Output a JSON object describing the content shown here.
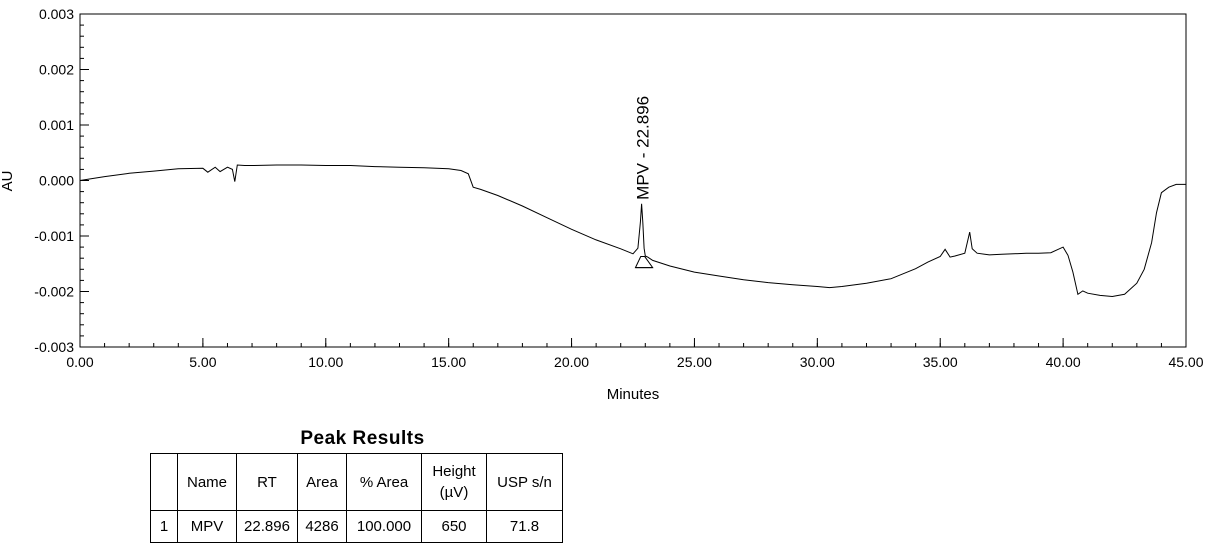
{
  "chart_data": {
    "type": "line",
    "title": "",
    "xlabel": "Minutes",
    "ylabel": "AU",
    "xlim": [
      0,
      45
    ],
    "ylim": [
      -0.003,
      0.003
    ],
    "x_ticks": [
      "0.00",
      "5.00",
      "10.00",
      "15.00",
      "20.00",
      "25.00",
      "30.00",
      "35.00",
      "40.00",
      "45.00"
    ],
    "y_ticks": [
      "0.003",
      "0.002",
      "0.001",
      "0.000",
      "-0.001",
      "-0.002",
      "-0.003"
    ],
    "grid": false,
    "line_color": "#000000",
    "series": [
      {
        "x": [
          0.0,
          1.0,
          2.0,
          3.0,
          4.0,
          5.0,
          5.2,
          5.5,
          5.7,
          6.0,
          6.2,
          6.3,
          6.4,
          6.7,
          7.0,
          8.0,
          9.0,
          10.0,
          11.0,
          12.0,
          13.0,
          14.0,
          15.0,
          15.5,
          15.8,
          16.0,
          16.3,
          17.0,
          18.0,
          19.0,
          20.0,
          21.0,
          22.0,
          22.5,
          22.7,
          22.8,
          22.85,
          22.9,
          22.95,
          23.0,
          23.1,
          23.3,
          24.0,
          25.0,
          26.0,
          27.0,
          28.0,
          29.0,
          30.0,
          30.5,
          31.0,
          32.0,
          33.0,
          34.0,
          34.5,
          35.0,
          35.2,
          35.4,
          35.6,
          36.0,
          36.2,
          36.3,
          36.5,
          37.0,
          37.5,
          38.0,
          38.5,
          39.0,
          39.5,
          40.0,
          40.2,
          40.4,
          40.6,
          40.8,
          41.0,
          41.5,
          42.0,
          42.5,
          43.0,
          43.3,
          43.6,
          43.8,
          44.0,
          44.3,
          44.6,
          45.0
        ],
        "y": [
          0.0,
          7e-05,
          0.00013,
          0.00017,
          0.00021,
          0.00022,
          0.00015,
          0.00024,
          0.00016,
          0.00024,
          0.0002,
          -2e-05,
          0.00028,
          0.00027,
          0.00027,
          0.00028,
          0.00028,
          0.00027,
          0.00027,
          0.00025,
          0.00024,
          0.00023,
          0.00021,
          0.00018,
          0.00012,
          -0.00012,
          -0.00016,
          -0.00027,
          -0.00046,
          -0.00067,
          -0.00088,
          -0.00107,
          -0.00123,
          -0.00132,
          -0.00122,
          -0.00075,
          -0.00042,
          -0.00075,
          -0.00122,
          -0.00136,
          -0.00138,
          -0.00144,
          -0.00154,
          -0.00165,
          -0.00172,
          -0.00179,
          -0.00184,
          -0.00188,
          -0.00191,
          -0.00193,
          -0.00191,
          -0.00185,
          -0.00177,
          -0.00159,
          -0.00147,
          -0.00137,
          -0.00124,
          -0.00138,
          -0.00136,
          -0.00131,
          -0.00093,
          -0.00123,
          -0.00131,
          -0.00134,
          -0.00133,
          -0.00132,
          -0.00131,
          -0.00131,
          -0.0013,
          -0.0012,
          -0.00135,
          -0.00165,
          -0.00205,
          -0.00199,
          -0.00203,
          -0.00207,
          -0.00209,
          -0.00205,
          -0.00185,
          -0.0016,
          -0.00112,
          -0.00058,
          -0.00022,
          -0.00012,
          -7e-05,
          -7e-05
        ]
      }
    ],
    "peaks": [
      {
        "label": "MPV - 22.896",
        "x": 22.896,
        "y": -0.00042,
        "baseline_start": 22.6,
        "baseline_end": 23.3
      }
    ]
  },
  "results": {
    "title": "Peak Results",
    "headers": [
      "",
      "Name",
      "RT",
      "Area",
      "% Area",
      "Height\n(µV)",
      "USP s/n"
    ],
    "rows": [
      [
        "1",
        "MPV",
        "22.896",
        "4286",
        "100.000",
        "650",
        "71.8"
      ]
    ]
  }
}
